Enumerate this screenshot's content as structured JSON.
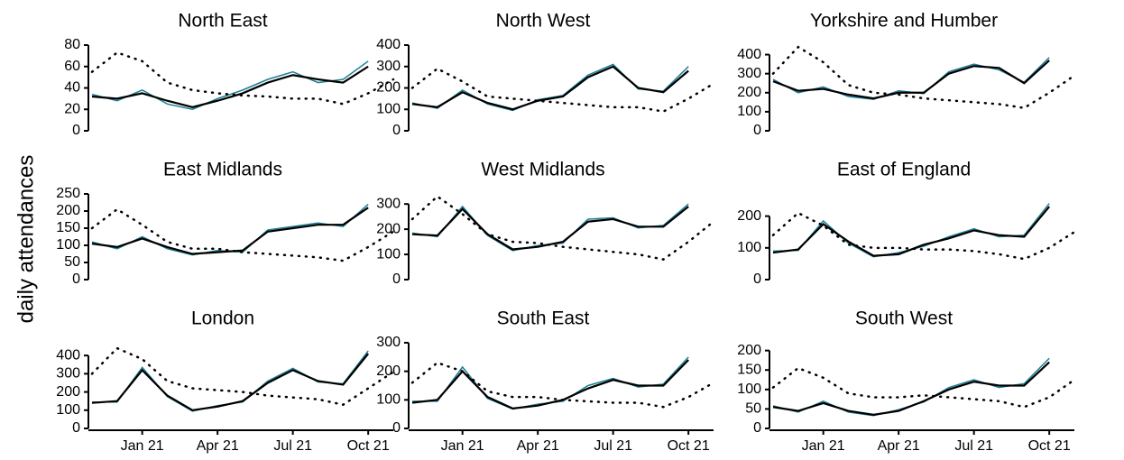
{
  "y_label": "daily attendances",
  "chart_data": [
    {
      "type": "line",
      "title": "North East",
      "x": [
        "2020-11",
        "2020-12",
        "2021-01",
        "2021-02",
        "2021-03",
        "2021-04",
        "2021-05",
        "2021-06",
        "2021-07",
        "2021-08",
        "2021-09",
        "2021-10",
        "2021-11"
      ],
      "xlim": [
        "2020-11",
        "2021-11"
      ],
      "ylim": [
        0,
        80
      ],
      "yticks": [
        0,
        20,
        40,
        60,
        80
      ],
      "series": [
        {
          "color": "#1b7f95",
          "values": [
            34,
            28,
            38,
            25,
            20,
            30,
            38,
            48,
            55,
            45,
            48,
            65,
            null
          ]
        },
        {
          "color": "#000000",
          "values": [
            32,
            30,
            35,
            28,
            22,
            28,
            35,
            45,
            52,
            48,
            45,
            60,
            null
          ]
        },
        {
          "color": "#000000",
          "line_style": "dotted",
          "values": [
            55,
            73,
            65,
            45,
            38,
            35,
            33,
            32,
            30,
            30,
            25,
            35,
            48
          ]
        }
      ]
    },
    {
      "type": "line",
      "title": "North West",
      "x": [
        "2020-11",
        "2020-12",
        "2021-01",
        "2021-02",
        "2021-03",
        "2021-04",
        "2021-05",
        "2021-06",
        "2021-07",
        "2021-08",
        "2021-09",
        "2021-10",
        "2021-11"
      ],
      "xlim": [
        "2020-11",
        "2021-11"
      ],
      "ylim": [
        0,
        400
      ],
      "yticks": [
        0,
        100,
        200,
        300,
        400
      ],
      "series": [
        {
          "color": "#1b7f95",
          "values": [
            130,
            105,
            190,
            125,
            95,
            145,
            165,
            260,
            310,
            195,
            185,
            300,
            null
          ]
        },
        {
          "color": "#000000",
          "values": [
            125,
            110,
            180,
            130,
            100,
            140,
            160,
            250,
            300,
            200,
            180,
            280,
            null
          ]
        },
        {
          "color": "#000000",
          "line_style": "dotted",
          "values": [
            200,
            290,
            230,
            160,
            150,
            140,
            130,
            120,
            110,
            110,
            90,
            150,
            220
          ]
        }
      ]
    },
    {
      "type": "line",
      "title": "Yorkshire and Humber",
      "x": [
        "2020-11",
        "2020-12",
        "2021-01",
        "2021-02",
        "2021-03",
        "2021-04",
        "2021-05",
        "2021-06",
        "2021-07",
        "2021-08",
        "2021-09",
        "2021-10",
        "2021-11"
      ],
      "xlim": [
        "2020-11",
        "2021-11"
      ],
      "ylim": [
        0,
        450
      ],
      "yticks": [
        0,
        100,
        200,
        300,
        400
      ],
      "series": [
        {
          "color": "#1b7f95",
          "values": [
            270,
            200,
            230,
            180,
            165,
            210,
            195,
            310,
            350,
            320,
            255,
            385,
            null
          ]
        },
        {
          "color": "#000000",
          "values": [
            260,
            210,
            220,
            190,
            170,
            200,
            200,
            300,
            340,
            330,
            250,
            370,
            null
          ]
        },
        {
          "color": "#000000",
          "line_style": "dotted",
          "values": [
            300,
            440,
            360,
            240,
            200,
            190,
            170,
            160,
            150,
            140,
            120,
            200,
            290
          ]
        }
      ]
    },
    {
      "type": "line",
      "title": "East Midlands",
      "x": [
        "2020-11",
        "2020-12",
        "2021-01",
        "2021-02",
        "2021-03",
        "2021-04",
        "2021-05",
        "2021-06",
        "2021-07",
        "2021-08",
        "2021-09",
        "2021-10",
        "2021-11"
      ],
      "xlim": [
        "2020-11",
        "2021-11"
      ],
      "ylim": [
        0,
        250
      ],
      "yticks": [
        0,
        50,
        100,
        150,
        200,
        250
      ],
      "series": [
        {
          "color": "#1b7f95",
          "values": [
            110,
            90,
            125,
            90,
            72,
            85,
            80,
            145,
            155,
            165,
            155,
            220,
            null
          ]
        },
        {
          "color": "#000000",
          "values": [
            105,
            95,
            120,
            95,
            75,
            80,
            85,
            140,
            150,
            160,
            160,
            210,
            null
          ]
        },
        {
          "color": "#000000",
          "line_style": "dotted",
          "values": [
            150,
            205,
            160,
            110,
            90,
            90,
            80,
            75,
            70,
            65,
            55,
            95,
            140
          ]
        }
      ]
    },
    {
      "type": "line",
      "title": "West Midlands",
      "x": [
        "2020-11",
        "2020-12",
        "2021-01",
        "2021-02",
        "2021-03",
        "2021-04",
        "2021-05",
        "2021-06",
        "2021-07",
        "2021-08",
        "2021-09",
        "2021-10",
        "2021-11"
      ],
      "xlim": [
        "2020-11",
        "2021-11"
      ],
      "ylim": [
        0,
        340
      ],
      "yticks": [
        0,
        100,
        200,
        300
      ],
      "series": [
        {
          "color": "#1b7f95",
          "values": [
            185,
            170,
            290,
            175,
            115,
            135,
            145,
            240,
            245,
            205,
            215,
            300,
            null
          ]
        },
        {
          "color": "#000000",
          "values": [
            180,
            175,
            280,
            180,
            120,
            130,
            150,
            230,
            240,
            210,
            210,
            290,
            null
          ]
        },
        {
          "color": "#000000",
          "line_style": "dotted",
          "values": [
            240,
            330,
            260,
            180,
            150,
            145,
            130,
            120,
            110,
            100,
            80,
            150,
            230
          ]
        }
      ]
    },
    {
      "type": "line",
      "title": "East of England",
      "x": [
        "2020-11",
        "2020-12",
        "2021-01",
        "2021-02",
        "2021-03",
        "2021-04",
        "2021-05",
        "2021-06",
        "2021-07",
        "2021-08",
        "2021-09",
        "2021-10",
        "2021-11"
      ],
      "xlim": [
        "2020-11",
        "2021-11"
      ],
      "ylim": [
        0,
        270
      ],
      "yticks": [
        0,
        100,
        200
      ],
      "series": [
        {
          "color": "#1b7f95",
          "values": [
            90,
            92,
            185,
            115,
            72,
            85,
            105,
            135,
            160,
            135,
            140,
            240,
            null
          ]
        },
        {
          "color": "#000000",
          "values": [
            85,
            95,
            175,
            120,
            75,
            80,
            110,
            130,
            155,
            140,
            135,
            230,
            null
          ]
        },
        {
          "color": "#000000",
          "line_style": "dotted",
          "values": [
            140,
            210,
            170,
            110,
            100,
            100,
            95,
            95,
            90,
            80,
            65,
            100,
            150
          ]
        }
      ]
    },
    {
      "type": "line",
      "title": "London",
      "x": [
        "2020-11",
        "2020-12",
        "2021-01",
        "2021-02",
        "2021-03",
        "2021-04",
        "2021-05",
        "2021-06",
        "2021-07",
        "2021-08",
        "2021-09",
        "2021-10",
        "2021-11"
      ],
      "xlim": [
        "2020-11",
        "2021-11"
      ],
      "ylim": [
        0,
        470
      ],
      "yticks": [
        0,
        100,
        200,
        300,
        400
      ],
      "xticks": [
        {
          "value": "2021-01",
          "label": "Jan 21"
        },
        {
          "value": "2021-04",
          "label": "Apr 21"
        },
        {
          "value": "2021-07",
          "label": "Jul 21"
        },
        {
          "value": "2021-10",
          "label": "Oct 21"
        }
      ],
      "series": [
        {
          "color": "#1b7f95",
          "values": [
            145,
            145,
            335,
            175,
            95,
            125,
            145,
            260,
            330,
            255,
            245,
            425,
            null
          ]
        },
        {
          "color": "#000000",
          "values": [
            140,
            150,
            320,
            180,
            100,
            120,
            150,
            250,
            320,
            260,
            240,
            410,
            null
          ]
        },
        {
          "color": "#000000",
          "line_style": "dotted",
          "values": [
            300,
            440,
            380,
            260,
            220,
            210,
            200,
            180,
            170,
            160,
            130,
            220,
            310
          ]
        }
      ]
    },
    {
      "type": "line",
      "title": "South East",
      "x": [
        "2020-11",
        "2020-12",
        "2021-01",
        "2021-02",
        "2021-03",
        "2021-04",
        "2021-05",
        "2021-06",
        "2021-07",
        "2021-08",
        "2021-09",
        "2021-10",
        "2021-11"
      ],
      "xlim": [
        "2020-11",
        "2021-11"
      ],
      "ylim": [
        0,
        300
      ],
      "yticks": [
        0,
        100,
        200,
        300
      ],
      "xticks": [
        {
          "value": "2021-01",
          "label": "Jan 21"
        },
        {
          "value": "2021-04",
          "label": "Apr 21"
        },
        {
          "value": "2021-07",
          "label": "Jul 21"
        },
        {
          "value": "2021-10",
          "label": "Oct 21"
        }
      ],
      "series": [
        {
          "color": "#1b7f95",
          "values": [
            95,
            95,
            215,
            105,
            68,
            85,
            95,
            150,
            175,
            145,
            155,
            250,
            null
          ]
        },
        {
          "color": "#000000",
          "values": [
            90,
            100,
            200,
            110,
            70,
            80,
            100,
            140,
            170,
            150,
            150,
            240,
            null
          ]
        },
        {
          "color": "#000000",
          "line_style": "dotted",
          "values": [
            160,
            230,
            200,
            130,
            110,
            110,
            100,
            95,
            90,
            90,
            75,
            110,
            160
          ]
        }
      ]
    },
    {
      "type": "line",
      "title": "South West",
      "x": [
        "2020-11",
        "2020-12",
        "2021-01",
        "2021-02",
        "2021-03",
        "2021-04",
        "2021-05",
        "2021-06",
        "2021-07",
        "2021-08",
        "2021-09",
        "2021-10",
        "2021-11"
      ],
      "xlim": [
        "2020-11",
        "2021-11"
      ],
      "ylim": [
        0,
        220
      ],
      "yticks": [
        0,
        50,
        100,
        150,
        200
      ],
      "xticks": [
        {
          "value": "2021-01",
          "label": "Jan 21"
        },
        {
          "value": "2021-04",
          "label": "Apr 21"
        },
        {
          "value": "2021-07",
          "label": "Jul 21"
        },
        {
          "value": "2021-10",
          "label": "Oct 21"
        }
      ],
      "series": [
        {
          "color": "#1b7f95",
          "values": [
            58,
            42,
            70,
            42,
            33,
            48,
            68,
            105,
            125,
            105,
            115,
            180,
            null
          ]
        },
        {
          "color": "#000000",
          "values": [
            55,
            45,
            65,
            45,
            35,
            45,
            70,
            100,
            120,
            110,
            110,
            170,
            null
          ]
        },
        {
          "color": "#000000",
          "line_style": "dotted",
          "values": [
            105,
            155,
            130,
            90,
            80,
            80,
            85,
            80,
            75,
            70,
            55,
            80,
            125
          ]
        }
      ]
    }
  ]
}
